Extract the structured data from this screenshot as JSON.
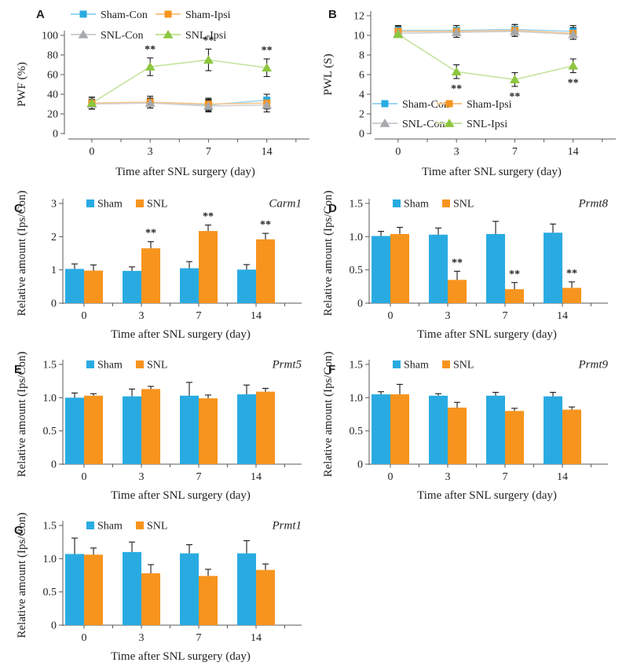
{
  "figure_title": "",
  "xlabel_shared": "Time after SNL surgery (day)",
  "colors": {
    "sham_con_blue": "#29abe2",
    "sham_ipsi_orange": "#f7941e",
    "snl_con_gray": "#a7a9ac",
    "snl_ipsi_green": "#8dc63f",
    "axis": "#58595b",
    "text": "#231f20"
  },
  "chart_data": [
    {
      "panel_label": "A",
      "type": "line",
      "ylabel": "PWF (%)",
      "xlabel": "Time after SNL surgery (day)",
      "categories": [
        "0",
        "3",
        "7",
        "14"
      ],
      "ylim": [
        0,
        100
      ],
      "yticks": [
        "0",
        "20",
        "40",
        "60",
        "80",
        "100"
      ],
      "legend_pos": "top",
      "grid": false,
      "series": [
        {
          "name": "Sham-Con",
          "marker": "square",
          "color": "#29abe2",
          "line_color": "#9ad5f0",
          "values": [
            31,
            31,
            29,
            34
          ],
          "errors": [
            6,
            5,
            6,
            6
          ]
        },
        {
          "name": "Sham-Ipsi",
          "marker": "square",
          "color": "#f7941e",
          "line_color": "#fbc488",
          "values": [
            31,
            32,
            30,
            31
          ],
          "errors": [
            6,
            6,
            6,
            6
          ]
        },
        {
          "name": "SNL-Con",
          "marker": "triangle",
          "color": "#a7a9ac",
          "line_color": "#cfd0d2",
          "values": [
            30,
            31,
            28,
            29
          ],
          "errors": [
            5,
            5,
            6,
            7
          ]
        },
        {
          "name": "SNL-Ipsi",
          "marker": "triangle",
          "color": "#8dc63f",
          "line_color": "#c4e29b",
          "values": [
            31,
            68,
            75,
            67
          ],
          "errors": [
            6,
            9,
            11,
            9
          ],
          "annotations": [
            "",
            "**",
            "**",
            "**"
          ],
          "annotation_side": "above"
        }
      ]
    },
    {
      "panel_label": "B",
      "type": "line",
      "ylabel": "PWL (S)",
      "xlabel": "Time after SNL surgery (day)",
      "categories": [
        "0",
        "3",
        "7",
        "14"
      ],
      "ylim": [
        0,
        12
      ],
      "yticks": [
        "0",
        "2",
        "4",
        "6",
        "8",
        "10",
        "12"
      ],
      "legend_pos": "inside-bottom-left",
      "grid": false,
      "series": [
        {
          "name": "Sham-Con",
          "marker": "square",
          "color": "#29abe2",
          "line_color": "#9ad5f0",
          "values": [
            10.5,
            10.5,
            10.6,
            10.4
          ],
          "errors": [
            0.5,
            0.5,
            0.5,
            0.6
          ]
        },
        {
          "name": "Sham-Ipsi",
          "marker": "square",
          "color": "#f7941e",
          "line_color": "#fbc488",
          "values": [
            10.4,
            10.4,
            10.5,
            10.2
          ],
          "errors": [
            0.5,
            0.6,
            0.6,
            0.6
          ]
        },
        {
          "name": "SNL-Con",
          "marker": "triangle",
          "color": "#a7a9ac",
          "line_color": "#cfd0d2",
          "values": [
            10.2,
            10.3,
            10.4,
            10.1
          ],
          "errors": [
            0.4,
            0.5,
            0.5,
            0.5
          ]
        },
        {
          "name": "SNL-Ipsi",
          "marker": "triangle",
          "color": "#8dc63f",
          "line_color": "#c4e29b",
          "values": [
            10.1,
            6.3,
            5.5,
            6.9
          ],
          "errors": [
            0.3,
            0.7,
            0.7,
            0.7
          ],
          "annotations": [
            "",
            "**",
            "**",
            "**"
          ],
          "annotation_side": "below"
        }
      ]
    },
    {
      "panel_label": "C",
      "type": "bar",
      "gene": "Carm1",
      "ylabel": "Relative amount (Ips/Con)",
      "xlabel": "Time after SNL surgery (day)",
      "categories": [
        "0",
        "3",
        "7",
        "14"
      ],
      "ylim": [
        0,
        3
      ],
      "yticks": [
        "0",
        "1",
        "2",
        "3"
      ],
      "grid": false,
      "series": [
        {
          "name": "Sham",
          "color": "#29abe2",
          "values": [
            1.03,
            0.97,
            1.05,
            1.01
          ],
          "errors": [
            0.15,
            0.12,
            0.2,
            0.15
          ]
        },
        {
          "name": "SNL",
          "color": "#f7941e",
          "values": [
            0.98,
            1.65,
            2.17,
            1.92
          ],
          "errors": [
            0.17,
            0.2,
            0.18,
            0.18
          ],
          "annotations": [
            "",
            "**",
            "**",
            "**"
          ]
        }
      ]
    },
    {
      "panel_label": "D",
      "type": "bar",
      "gene": "Prmt8",
      "ylabel": "Relative amount (Ips/Con)",
      "xlabel": "Time after SNL surgery (day)",
      "categories": [
        "0",
        "3",
        "7",
        "14"
      ],
      "ylim": [
        0,
        1.5
      ],
      "yticks": [
        "0",
        "0.5",
        "1.0",
        "1.5"
      ],
      "grid": false,
      "series": [
        {
          "name": "Sham",
          "color": "#29abe2",
          "values": [
            1.01,
            1.03,
            1.04,
            1.06
          ],
          "errors": [
            0.07,
            0.1,
            0.19,
            0.13
          ]
        },
        {
          "name": "SNL",
          "color": "#f7941e",
          "values": [
            1.04,
            0.35,
            0.21,
            0.23
          ],
          "errors": [
            0.1,
            0.13,
            0.1,
            0.09
          ],
          "annotations": [
            "",
            "**",
            "**",
            "**"
          ]
        }
      ]
    },
    {
      "panel_label": "E",
      "type": "bar",
      "gene": "Prmt5",
      "ylabel": "Relative amount (Ips/Con)",
      "xlabel": "Time after SNL surgery (day)",
      "categories": [
        "0",
        "3",
        "7",
        "14"
      ],
      "ylim": [
        0,
        1.5
      ],
      "yticks": [
        "0",
        "0.5",
        "1.0",
        "1.5"
      ],
      "grid": false,
      "series": [
        {
          "name": "Sham",
          "color": "#29abe2",
          "values": [
            1.0,
            1.02,
            1.03,
            1.05
          ],
          "errors": [
            0.07,
            0.11,
            0.2,
            0.14
          ]
        },
        {
          "name": "SNL",
          "color": "#f7941e",
          "values": [
            1.03,
            1.13,
            0.99,
            1.09
          ],
          "errors": [
            0.03,
            0.04,
            0.05,
            0.05
          ]
        }
      ]
    },
    {
      "panel_label": "F",
      "type": "bar",
      "gene": "Prmt9",
      "ylabel": "Relative amount (Ips/Con)",
      "xlabel": "Time after SNL surgery (day)",
      "categories": [
        "0",
        "3",
        "7",
        "14"
      ],
      "ylim": [
        0,
        1.5
      ],
      "yticks": [
        "0",
        "0.5",
        "1.0",
        "1.5"
      ],
      "grid": false,
      "series": [
        {
          "name": "Sham",
          "color": "#29abe2",
          "values": [
            1.05,
            1.03,
            1.03,
            1.02
          ],
          "errors": [
            0.04,
            0.03,
            0.05,
            0.06
          ]
        },
        {
          "name": "SNL",
          "color": "#f7941e",
          "values": [
            1.05,
            0.85,
            0.8,
            0.82
          ],
          "errors": [
            0.15,
            0.08,
            0.04,
            0.04
          ]
        }
      ]
    },
    {
      "panel_label": "G",
      "type": "bar",
      "gene": "Prmt1",
      "ylabel": "Relative amount (Ips/Con)",
      "xlabel": "Time after SNL surgery (day)",
      "categories": [
        "0",
        "3",
        "7",
        "14"
      ],
      "ylim": [
        0,
        1.5
      ],
      "yticks": [
        "0",
        "0.5",
        "1.0",
        "1.5"
      ],
      "grid": false,
      "series": [
        {
          "name": "Sham",
          "color": "#29abe2",
          "values": [
            1.07,
            1.1,
            1.08,
            1.08
          ],
          "errors": [
            0.24,
            0.15,
            0.13,
            0.19
          ]
        },
        {
          "name": "SNL",
          "color": "#f7941e",
          "values": [
            1.06,
            0.78,
            0.74,
            0.83
          ],
          "errors": [
            0.1,
            0.13,
            0.1,
            0.09
          ]
        }
      ]
    }
  ]
}
